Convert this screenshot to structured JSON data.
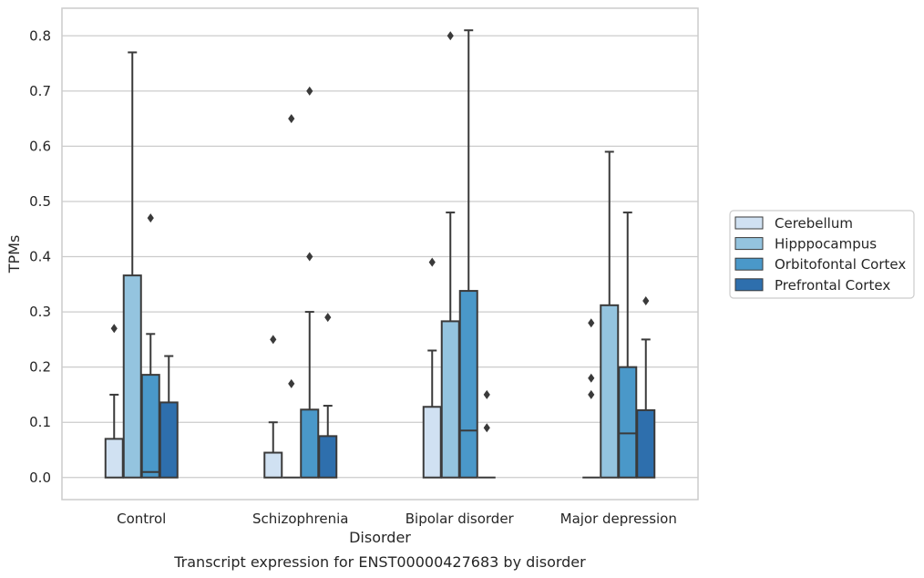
{
  "chart_data": {
    "type": "box",
    "caption": "Transcript expression for ENST00000427683 by disorder",
    "xlabel": "Disorder",
    "ylabel": "TPMs",
    "ylim": [
      -0.04,
      0.85
    ],
    "yticks": [
      "0.0",
      "0.1",
      "0.2",
      "0.3",
      "0.4",
      "0.5",
      "0.6",
      "0.7",
      "0.8"
    ],
    "grid": true,
    "legend_position": "right",
    "categories": [
      "Control",
      "Schizophrenia",
      "Bipolar disorder",
      "Major depression"
    ],
    "series": [
      {
        "name": "Cerebellum",
        "color": "#d0e1f2",
        "boxes": [
          {
            "q1": 0.0,
            "median": 0.0,
            "q3": 0.07,
            "whisker_low": 0.0,
            "whisker_high": 0.15,
            "outliers": [
              0.27
            ]
          },
          {
            "q1": 0.0,
            "median": 0.0,
            "q3": 0.045,
            "whisker_low": 0.0,
            "whisker_high": 0.1,
            "outliers": [
              0.25
            ]
          },
          {
            "q1": 0.0,
            "median": 0.0,
            "q3": 0.128,
            "whisker_low": 0.0,
            "whisker_high": 0.23,
            "outliers": [
              0.39
            ]
          },
          {
            "q1": 0.0,
            "median": 0.0,
            "q3": 0.0,
            "whisker_low": 0.0,
            "whisker_high": 0.0,
            "outliers": [
              0.28,
              0.18,
              0.15
            ]
          }
        ]
      },
      {
        "name": "Hipppocampus",
        "color": "#94c4df",
        "boxes": [
          {
            "q1": 0.0,
            "median": 0.0,
            "q3": 0.366,
            "whisker_low": 0.0,
            "whisker_high": 0.77,
            "outliers": []
          },
          {
            "q1": 0.0,
            "median": 0.0,
            "q3": 0.0,
            "whisker_low": 0.0,
            "whisker_high": 0.0,
            "outliers": [
              0.65,
              0.17
            ]
          },
          {
            "q1": 0.0,
            "median": 0.0,
            "q3": 0.283,
            "whisker_low": 0.0,
            "whisker_high": 0.48,
            "outliers": [
              0.8
            ]
          },
          {
            "q1": 0.0,
            "median": 0.0,
            "q3": 0.312,
            "whisker_low": 0.0,
            "whisker_high": 0.59,
            "outliers": []
          }
        ]
      },
      {
        "name": "Orbitofontal Cortex",
        "color": "#4a98c9",
        "boxes": [
          {
            "q1": 0.0,
            "median": 0.01,
            "q3": 0.186,
            "whisker_low": 0.0,
            "whisker_high": 0.26,
            "outliers": [
              0.47
            ]
          },
          {
            "q1": 0.0,
            "median": 0.0,
            "q3": 0.123,
            "whisker_low": 0.0,
            "whisker_high": 0.3,
            "outliers": [
              0.7,
              0.4
            ]
          },
          {
            "q1": 0.0,
            "median": 0.085,
            "q3": 0.338,
            "whisker_low": 0.0,
            "whisker_high": 0.81,
            "outliers": []
          },
          {
            "q1": 0.0,
            "median": 0.08,
            "q3": 0.2,
            "whisker_low": 0.0,
            "whisker_high": 0.48,
            "outliers": []
          }
        ]
      },
      {
        "name": "Prefrontal Cortex",
        "color": "#2e6fad",
        "boxes": [
          {
            "q1": 0.0,
            "median": 0.0,
            "q3": 0.136,
            "whisker_low": 0.0,
            "whisker_high": 0.22,
            "outliers": []
          },
          {
            "q1": 0.0,
            "median": 0.0,
            "q3": 0.075,
            "whisker_low": 0.0,
            "whisker_high": 0.13,
            "outliers": [
              0.29
            ]
          },
          {
            "q1": 0.0,
            "median": 0.0,
            "q3": 0.0,
            "whisker_low": 0.0,
            "whisker_high": 0.0,
            "outliers": [
              0.15,
              0.09
            ]
          },
          {
            "q1": 0.0,
            "median": 0.0,
            "q3": 0.122,
            "whisker_low": 0.0,
            "whisker_high": 0.25,
            "outliers": [
              0.32
            ]
          }
        ]
      }
    ]
  }
}
